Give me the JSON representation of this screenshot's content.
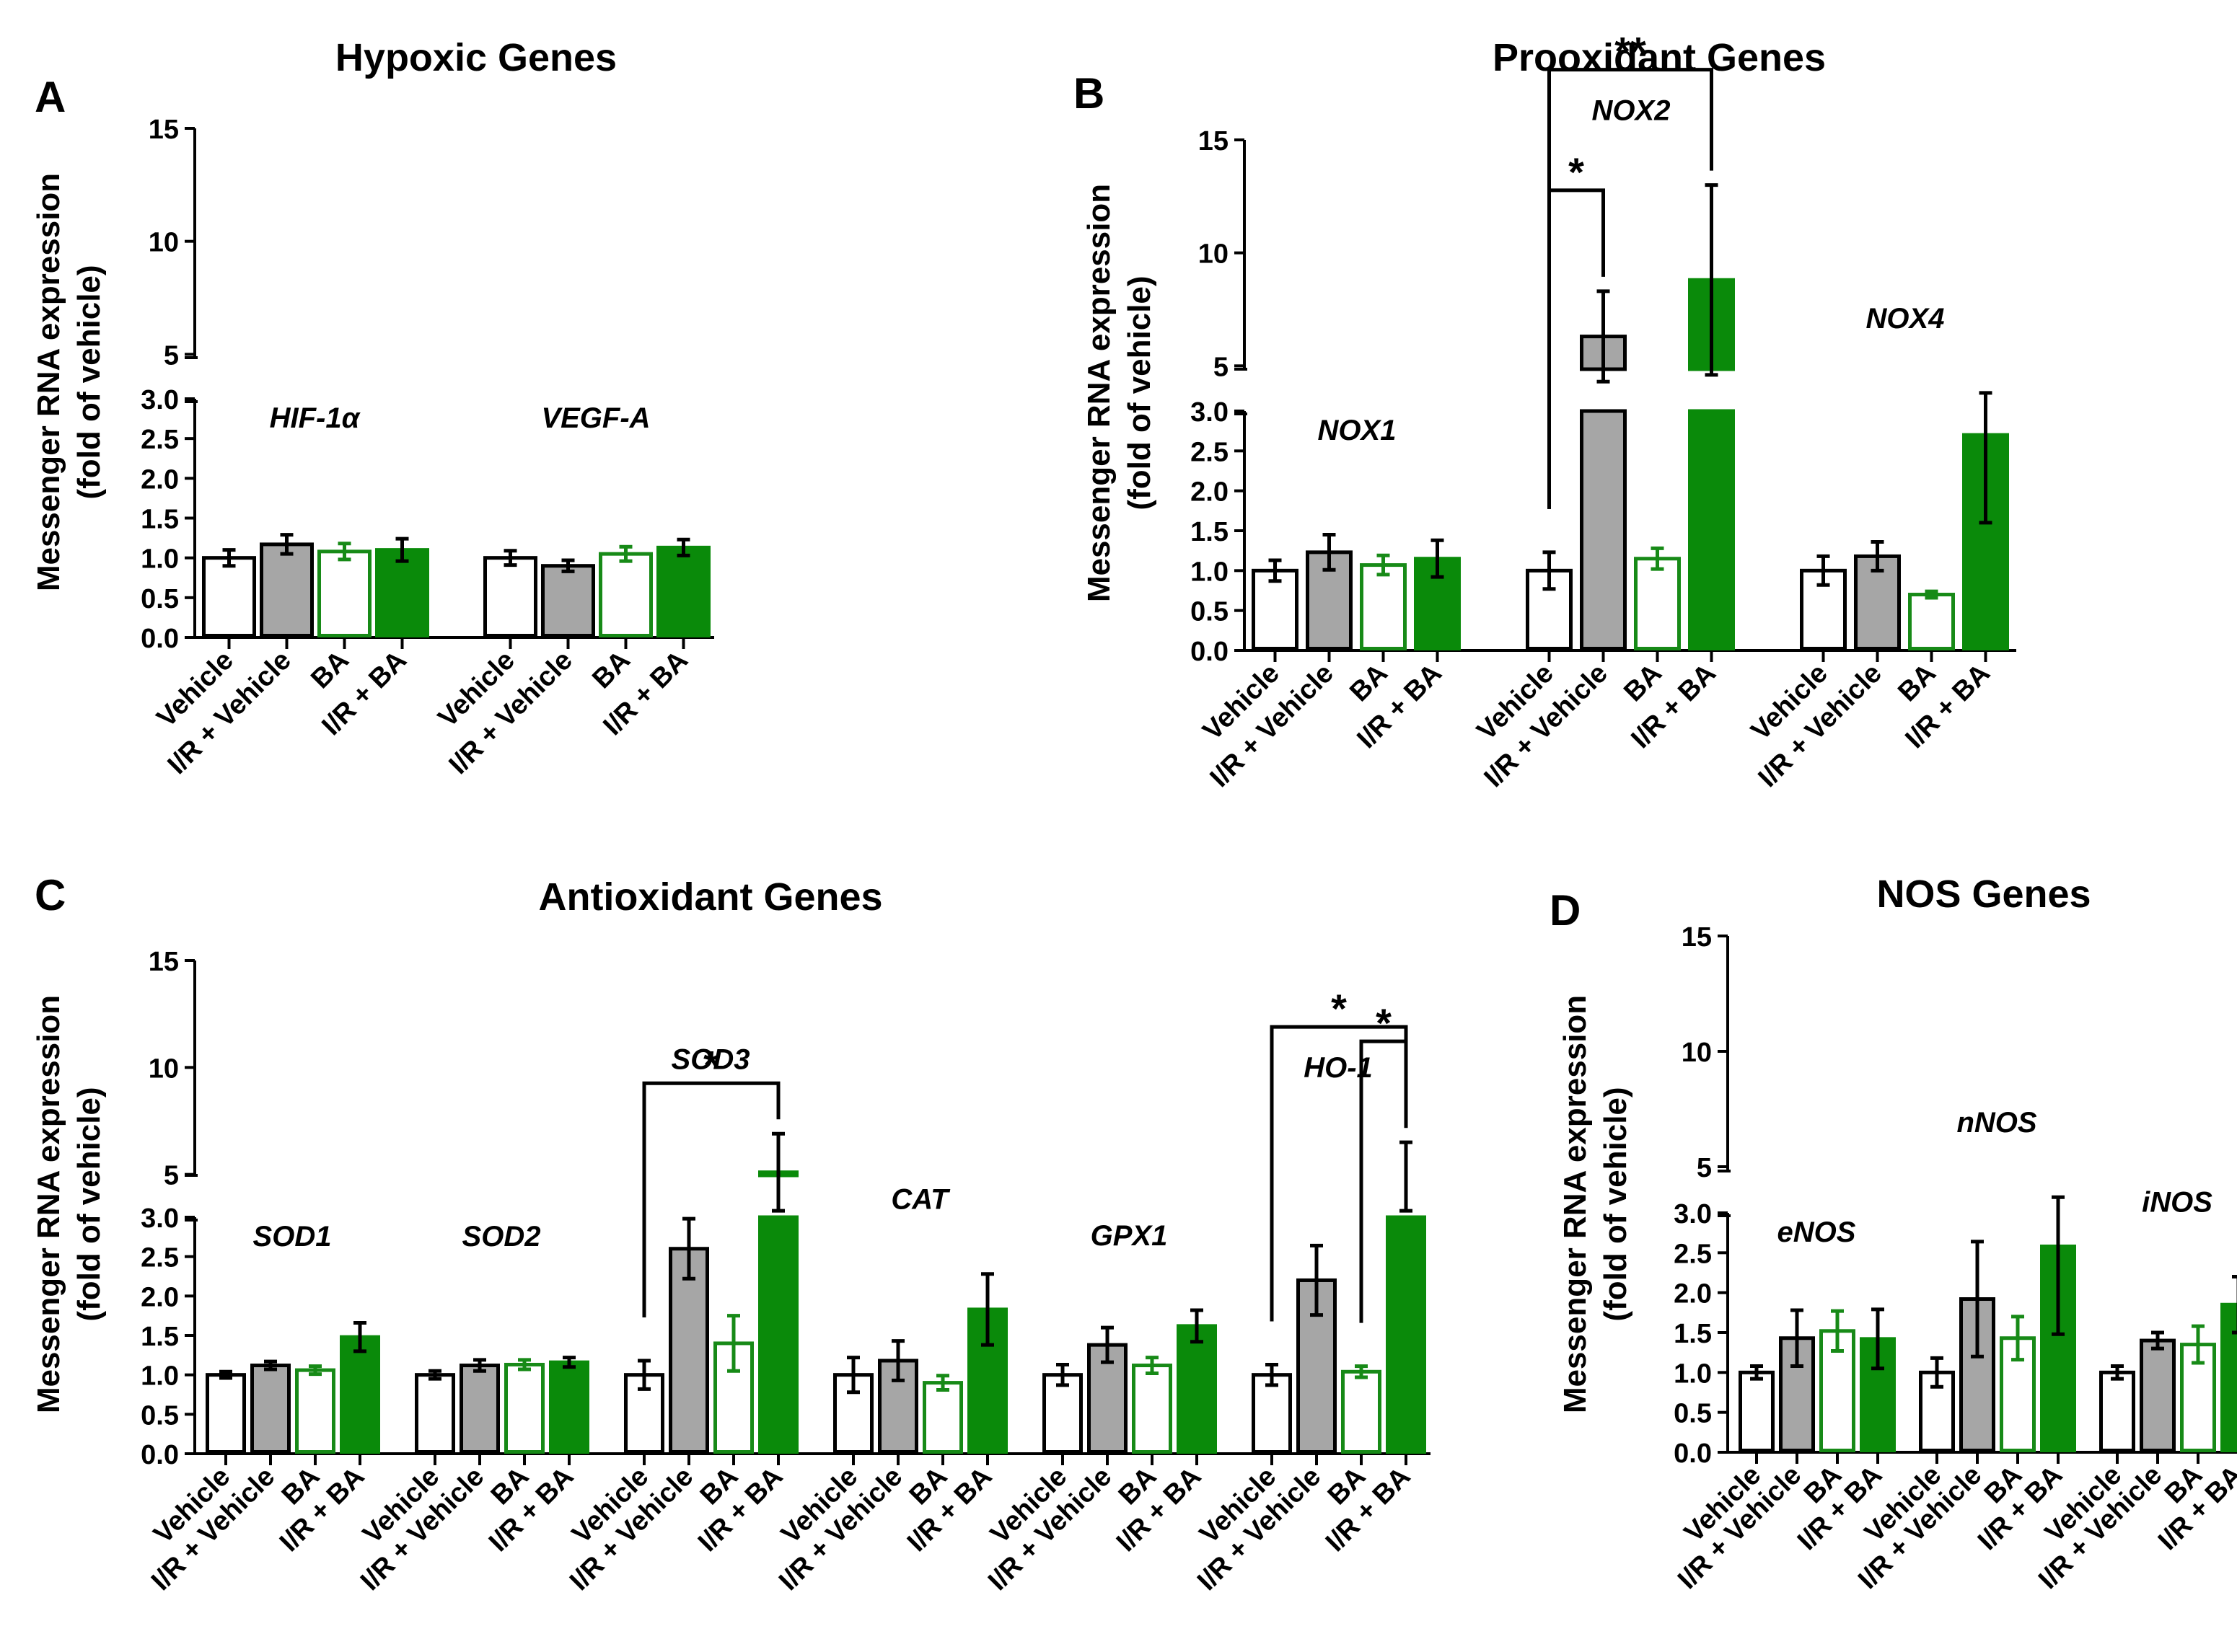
{
  "colors": {
    "vehicle": "#ffffff",
    "ir_vehicle": "#a6a6a6",
    "ba_outline": "#178a17",
    "ir_ba": "#0a8a0a",
    "axis": "#000000"
  },
  "categories": [
    "Vehicle",
    "I/R + Vehicle",
    "BA",
    "I/R + BA"
  ],
  "ylabel_line1": "Messenger RNA expression",
  "ylabel_line2": "(fold of vehicle)",
  "chart_data": [
    {
      "type": "bar",
      "panel": "A",
      "title": "Hypoxic Genes",
      "ylim_lower": [
        0,
        3.0
      ],
      "ylim_upper": [
        3.0,
        15
      ],
      "yticks_lower": [
        "0.0",
        "0.5",
        "1.0",
        "1.5",
        "2.0",
        "2.5",
        "3.0"
      ],
      "yticks_upper": [
        "5",
        "10",
        "15"
      ],
      "genes": [
        {
          "name": "HIF-1",
          "symbol": "α",
          "values": [
            1.0,
            1.17,
            1.08,
            1.1
          ],
          "errors": [
            0.1,
            0.12,
            0.1,
            0.14
          ]
        },
        {
          "name": "VEGF-A",
          "values": [
            1.0,
            0.9,
            1.05,
            1.13
          ],
          "errors": [
            0.09,
            0.07,
            0.09,
            0.1
          ]
        }
      ]
    },
    {
      "type": "bar",
      "panel": "B",
      "title": "Prooxidant Genes",
      "ylim_lower": [
        0,
        3.0
      ],
      "ylim_upper": [
        3.0,
        15
      ],
      "yticks_lower": [
        "0.0",
        "0.5",
        "1.0",
        "1.5",
        "2.0",
        "2.5",
        "3.0"
      ],
      "yticks_upper": [
        "5",
        "10",
        "15"
      ],
      "genes": [
        {
          "name": "NOX1",
          "values": [
            1.0,
            1.23,
            1.07,
            1.15
          ],
          "errors": [
            0.13,
            0.22,
            0.12,
            0.23
          ]
        },
        {
          "name": "NOX2",
          "values": [
            1.0,
            6.3,
            1.15,
            8.8
          ],
          "errors": [
            0.23,
            2.0,
            0.13,
            4.2
          ]
        },
        {
          "name": "NOX4",
          "values": [
            1.0,
            1.18,
            0.7,
            2.7
          ],
          "errors": [
            0.18,
            0.18,
            0.04,
            1.1
          ]
        }
      ],
      "significance": [
        {
          "gene": 1,
          "from": 0,
          "to": 1,
          "label": "*"
        },
        {
          "gene": 1,
          "from": 0,
          "to": 3,
          "label": "**"
        }
      ]
    },
    {
      "type": "bar",
      "panel": "C",
      "title": "Antioxidant Genes",
      "ylim_lower": [
        0,
        3.0
      ],
      "ylim_upper": [
        3.0,
        15
      ],
      "yticks_lower": [
        "0.0",
        "0.5",
        "1.0",
        "1.5",
        "2.0",
        "2.5",
        "3.0"
      ],
      "yticks_upper": [
        "5",
        "10",
        "15"
      ],
      "genes": [
        {
          "name": "SOD1",
          "values": [
            1.0,
            1.12,
            1.06,
            1.48
          ],
          "errors": [
            0.04,
            0.05,
            0.05,
            0.18
          ]
        },
        {
          "name": "SOD2",
          "values": [
            1.0,
            1.12,
            1.13,
            1.16
          ],
          "errors": [
            0.05,
            0.07,
            0.06,
            0.06
          ]
        },
        {
          "name": "SOD3",
          "values": [
            1.0,
            2.6,
            1.4,
            5.1
          ],
          "errors": [
            0.18,
            0.38,
            0.35,
            1.8
          ]
        },
        {
          "name": "CAT",
          "values": [
            1.0,
            1.18,
            0.9,
            1.83
          ],
          "errors": [
            0.22,
            0.25,
            0.09,
            0.45
          ]
        },
        {
          "name": "GPX1",
          "values": [
            1.0,
            1.38,
            1.12,
            1.62
          ],
          "errors": [
            0.13,
            0.22,
            0.1,
            0.2
          ]
        },
        {
          "name": "HO-1",
          "values": [
            1.0,
            2.2,
            1.04,
            4.9
          ],
          "errors": [
            0.13,
            0.44,
            0.07,
            1.6
          ]
        }
      ],
      "significance": [
        {
          "gene": 2,
          "from": 0,
          "to": 3,
          "label": "*"
        },
        {
          "gene": 5,
          "from": 0,
          "to": 3,
          "label": "*"
        },
        {
          "gene": 5,
          "from": 2,
          "to": 3,
          "label": "*"
        }
      ]
    },
    {
      "type": "bar",
      "panel": "D",
      "title": "NOS Genes",
      "ylim_lower": [
        0,
        3.0
      ],
      "ylim_upper": [
        3.0,
        15
      ],
      "yticks_lower": [
        "0.0",
        "0.5",
        "1.0",
        "1.5",
        "2.0",
        "2.5",
        "3.0"
      ],
      "yticks_upper": [
        "5",
        "10",
        "15"
      ],
      "genes": [
        {
          "name": "eNOS",
          "values": [
            1.0,
            1.43,
            1.52,
            1.42
          ],
          "errors": [
            0.08,
            0.35,
            0.25,
            0.37
          ]
        },
        {
          "name": "nNOS",
          "values": [
            1.0,
            1.92,
            1.43,
            2.58
          ],
          "errors": [
            0.18,
            0.72,
            0.27,
            1.1
          ]
        },
        {
          "name": "iNOS",
          "values": [
            1.0,
            1.4,
            1.35,
            1.85
          ],
          "errors": [
            0.08,
            0.1,
            0.23,
            0.35
          ]
        }
      ]
    }
  ]
}
